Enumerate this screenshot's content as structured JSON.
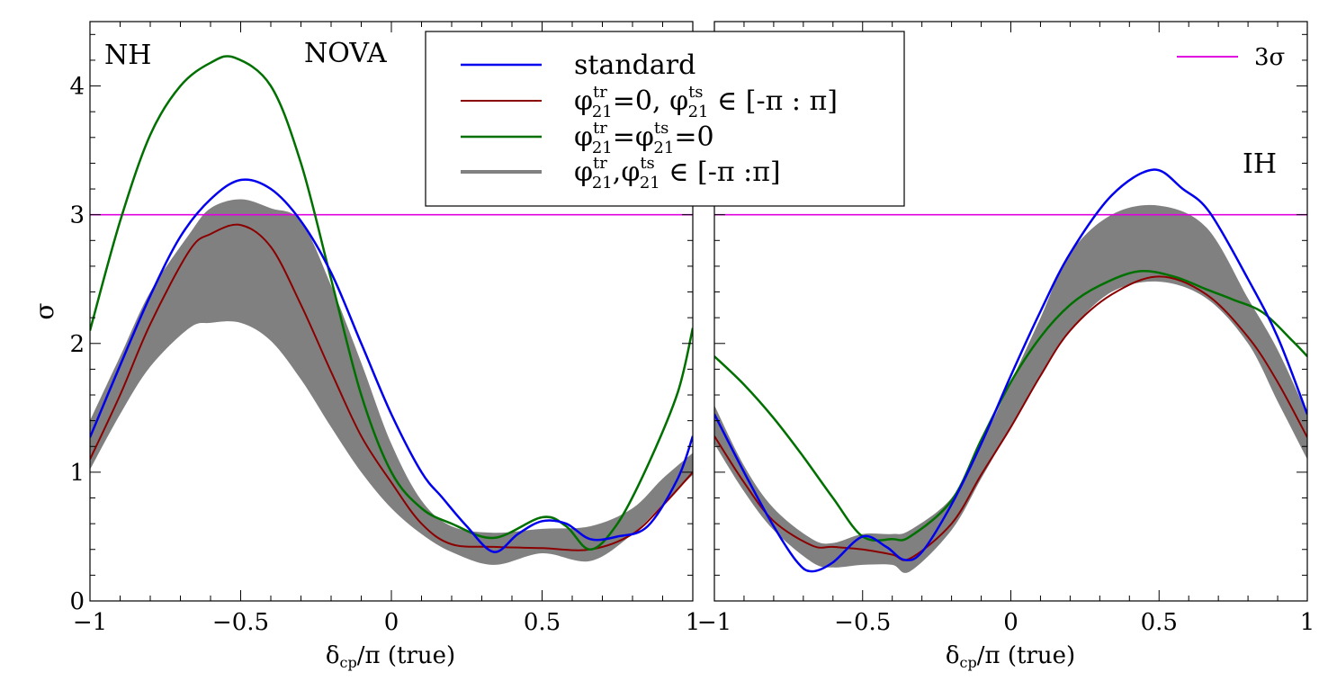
{
  "chart_data": [
    {
      "type": "line",
      "panel": "left",
      "xlabel": "δcp/π (true)",
      "xlabel_main": "δ",
      "xlabel_sub": "cp",
      "xlabel_rest": "/π (true)",
      "ylabel": "σ",
      "xlim": [
        -1,
        1
      ],
      "ylim": [
        0,
        4.5
      ],
      "xticks": [
        -1,
        -0.5,
        0,
        0.5,
        1
      ],
      "xtick_labels": [
        "−1",
        "−0.5",
        "0",
        "0.5",
        "1"
      ],
      "yticks": [
        0,
        1,
        2,
        3,
        4
      ],
      "ytick_labels": [
        "0",
        "1",
        "2",
        "3",
        "4"
      ],
      "annotations": {
        "hierarchy": "NH",
        "experiment": "NOVA"
      },
      "threshold": {
        "name": "3σ",
        "y": 3.0,
        "color": "#e000e0"
      },
      "band": {
        "name": "φ21tr,φ21ts ∈ [-π :π]",
        "color": "#808080",
        "x": [
          -1,
          -0.9,
          -0.8,
          -0.67,
          -0.6,
          -0.5,
          -0.4,
          -0.3,
          -0.2,
          -0.1,
          0,
          0.1,
          0.2,
          0.34,
          0.5,
          0.66,
          0.8,
          0.9,
          1
        ],
        "lower": [
          1.02,
          1.45,
          1.82,
          2.12,
          2.16,
          2.16,
          2.02,
          1.72,
          1.35,
          1.0,
          0.72,
          0.52,
          0.38,
          0.28,
          0.37,
          0.31,
          0.52,
          0.75,
          0.98
        ],
        "upper": [
          1.4,
          1.9,
          2.4,
          2.85,
          3.05,
          3.12,
          3.05,
          2.95,
          2.45,
          1.85,
          1.22,
          0.78,
          0.58,
          0.53,
          0.56,
          0.58,
          0.72,
          0.95,
          1.15
        ]
      },
      "series": [
        {
          "name": "standard",
          "color": "#0000ee",
          "x": [
            -1,
            -0.9,
            -0.8,
            -0.7,
            -0.6,
            -0.5,
            -0.4,
            -0.3,
            -0.2,
            -0.1,
            0,
            0.1,
            0.17,
            0.25,
            0.34,
            0.42,
            0.5,
            0.58,
            0.66,
            0.75,
            0.85,
            0.95,
            1
          ],
          "y": [
            1.27,
            1.83,
            2.37,
            2.83,
            3.12,
            3.27,
            3.2,
            2.95,
            2.55,
            2.0,
            1.45,
            1.0,
            0.8,
            0.58,
            0.38,
            0.52,
            0.62,
            0.6,
            0.48,
            0.5,
            0.58,
            0.95,
            1.28
          ]
        },
        {
          "name": "φ21tr=0, φ21ts ∈ [-π : π]",
          "color": "#8b0000",
          "x": [
            -1,
            -0.9,
            -0.8,
            -0.67,
            -0.6,
            -0.5,
            -0.4,
            -0.3,
            -0.2,
            -0.1,
            0,
            0.1,
            0.2,
            0.34,
            0.5,
            0.66,
            0.8,
            0.9,
            1
          ],
          "y": [
            1.1,
            1.6,
            2.15,
            2.72,
            2.85,
            2.92,
            2.75,
            2.3,
            1.78,
            1.28,
            0.92,
            0.6,
            0.44,
            0.42,
            0.41,
            0.4,
            0.52,
            0.74,
            1.0
          ]
        },
        {
          "name": "φ21tr=φ21ts=0",
          "color": "#007000",
          "x": [
            -1,
            -0.9,
            -0.8,
            -0.7,
            -0.6,
            -0.52,
            -0.4,
            -0.3,
            -0.2,
            -0.1,
            0,
            0.1,
            0.2,
            0.34,
            0.5,
            0.58,
            0.66,
            0.75,
            0.85,
            0.95,
            1
          ],
          "y": [
            2.1,
            2.95,
            3.62,
            4.0,
            4.18,
            4.22,
            4.0,
            3.4,
            2.5,
            1.6,
            1.0,
            0.72,
            0.6,
            0.49,
            0.65,
            0.58,
            0.4,
            0.6,
            1.05,
            1.62,
            2.12
          ]
        }
      ]
    },
    {
      "type": "line",
      "panel": "right",
      "xlabel": "δcp/π (true)",
      "xlabel_main": "δ",
      "xlabel_sub": "cp",
      "xlabel_rest": "/π (true)",
      "xlim": [
        -1,
        1
      ],
      "ylim": [
        0,
        4.5
      ],
      "xticks": [
        -1,
        -0.5,
        0,
        0.5,
        1
      ],
      "xtick_labels": [
        "−1",
        "−0.5",
        "0",
        "0.5",
        "1"
      ],
      "annotations": {
        "hierarchy": "IH"
      },
      "threshold": {
        "name": "3σ",
        "y": 3.0,
        "color": "#e000e0"
      },
      "band": {
        "name": "φ21tr,φ21ts ∈ [-π :π]",
        "color": "#808080",
        "x": [
          -1,
          -0.9,
          -0.8,
          -0.67,
          -0.6,
          -0.5,
          -0.4,
          -0.34,
          -0.2,
          -0.1,
          0,
          0.1,
          0.2,
          0.34,
          0.5,
          0.66,
          0.8,
          0.9,
          1
        ],
        "lower": [
          1.22,
          0.85,
          0.55,
          0.3,
          0.26,
          0.28,
          0.28,
          0.23,
          0.55,
          0.95,
          1.35,
          1.75,
          2.1,
          2.4,
          2.48,
          2.35,
          2.0,
          1.55,
          1.1
        ],
        "upper": [
          1.52,
          1.05,
          0.72,
          0.48,
          0.45,
          0.52,
          0.52,
          0.55,
          0.8,
          1.22,
          1.7,
          2.2,
          2.7,
          3.0,
          3.07,
          2.9,
          2.35,
          1.95,
          1.45
        ]
      },
      "series": [
        {
          "name": "standard",
          "color": "#0000ee",
          "x": [
            -1,
            -0.9,
            -0.8,
            -0.72,
            -0.67,
            -0.6,
            -0.5,
            -0.42,
            -0.36,
            -0.3,
            -0.2,
            -0.1,
            0,
            0.1,
            0.2,
            0.34,
            0.48,
            0.58,
            0.67,
            0.8,
            0.9,
            1
          ],
          "y": [
            1.45,
            1.0,
            0.58,
            0.3,
            0.23,
            0.3,
            0.5,
            0.42,
            0.32,
            0.38,
            0.75,
            1.22,
            1.75,
            2.25,
            2.7,
            3.15,
            3.35,
            3.2,
            3.02,
            2.5,
            2.05,
            1.45
          ]
        },
        {
          "name": "φ21tr=0, φ21ts ∈ [-π : π]",
          "color": "#8b0000",
          "x": [
            -1,
            -0.9,
            -0.8,
            -0.67,
            -0.6,
            -0.5,
            -0.4,
            -0.34,
            -0.2,
            -0.1,
            0,
            0.1,
            0.2,
            0.34,
            0.5,
            0.66,
            0.8,
            0.9,
            1
          ],
          "y": [
            1.28,
            0.92,
            0.62,
            0.43,
            0.42,
            0.4,
            0.36,
            0.33,
            0.6,
            0.98,
            1.35,
            1.75,
            2.1,
            2.38,
            2.52,
            2.38,
            2.05,
            1.7,
            1.27
          ]
        },
        {
          "name": "φ21tr=φ21ts=0",
          "color": "#007000",
          "x": [
            -1,
            -0.9,
            -0.8,
            -0.7,
            -0.6,
            -0.5,
            -0.4,
            -0.34,
            -0.2,
            -0.1,
            0,
            0.1,
            0.2,
            0.3,
            0.43,
            0.55,
            0.66,
            0.75,
            0.85,
            0.95,
            1
          ],
          "y": [
            1.9,
            1.68,
            1.42,
            1.12,
            0.8,
            0.5,
            0.48,
            0.5,
            0.78,
            1.25,
            1.7,
            2.05,
            2.3,
            2.45,
            2.56,
            2.52,
            2.42,
            2.34,
            2.24,
            2.02,
            1.9
          ]
        }
      ]
    }
  ],
  "legend": {
    "items": [
      {
        "name": "standard",
        "color": "#0000ee",
        "width": 2.5
      },
      {
        "name": "φ21tr=0, φ21ts ∈ [-π : π]",
        "color": "#8b0000",
        "width": 2
      },
      {
        "name": "φ21tr=φ21ts=0",
        "color": "#007000",
        "width": 2.5
      },
      {
        "name": "φ21tr,φ21ts ∈ [-π :π]",
        "color": "#808080",
        "width": 4
      }
    ],
    "label_parts": [
      {
        "a": "standard"
      },
      {
        "p1": "φ",
        "sup1": "tr",
        "sub1": "21",
        "mid": "=0, ",
        "p2": "φ",
        "sup2": "ts",
        "sub2": "21",
        "end": " ∈ [-π : π]"
      },
      {
        "p1": "φ",
        "sup1": "tr",
        "sub1": "21",
        "mid": "=",
        "p2": "φ",
        "sup2": "ts",
        "sub2": "21",
        "end": "=0"
      },
      {
        "p1": "φ",
        "sup1": "tr",
        "sub1": "21",
        "mid": ",",
        "p2": "φ",
        "sup2": "ts",
        "sub2": "21",
        "end": " ∈ [-π :π]"
      }
    ]
  },
  "threshold_legend": {
    "label": "3σ",
    "color": "#e000e0"
  }
}
